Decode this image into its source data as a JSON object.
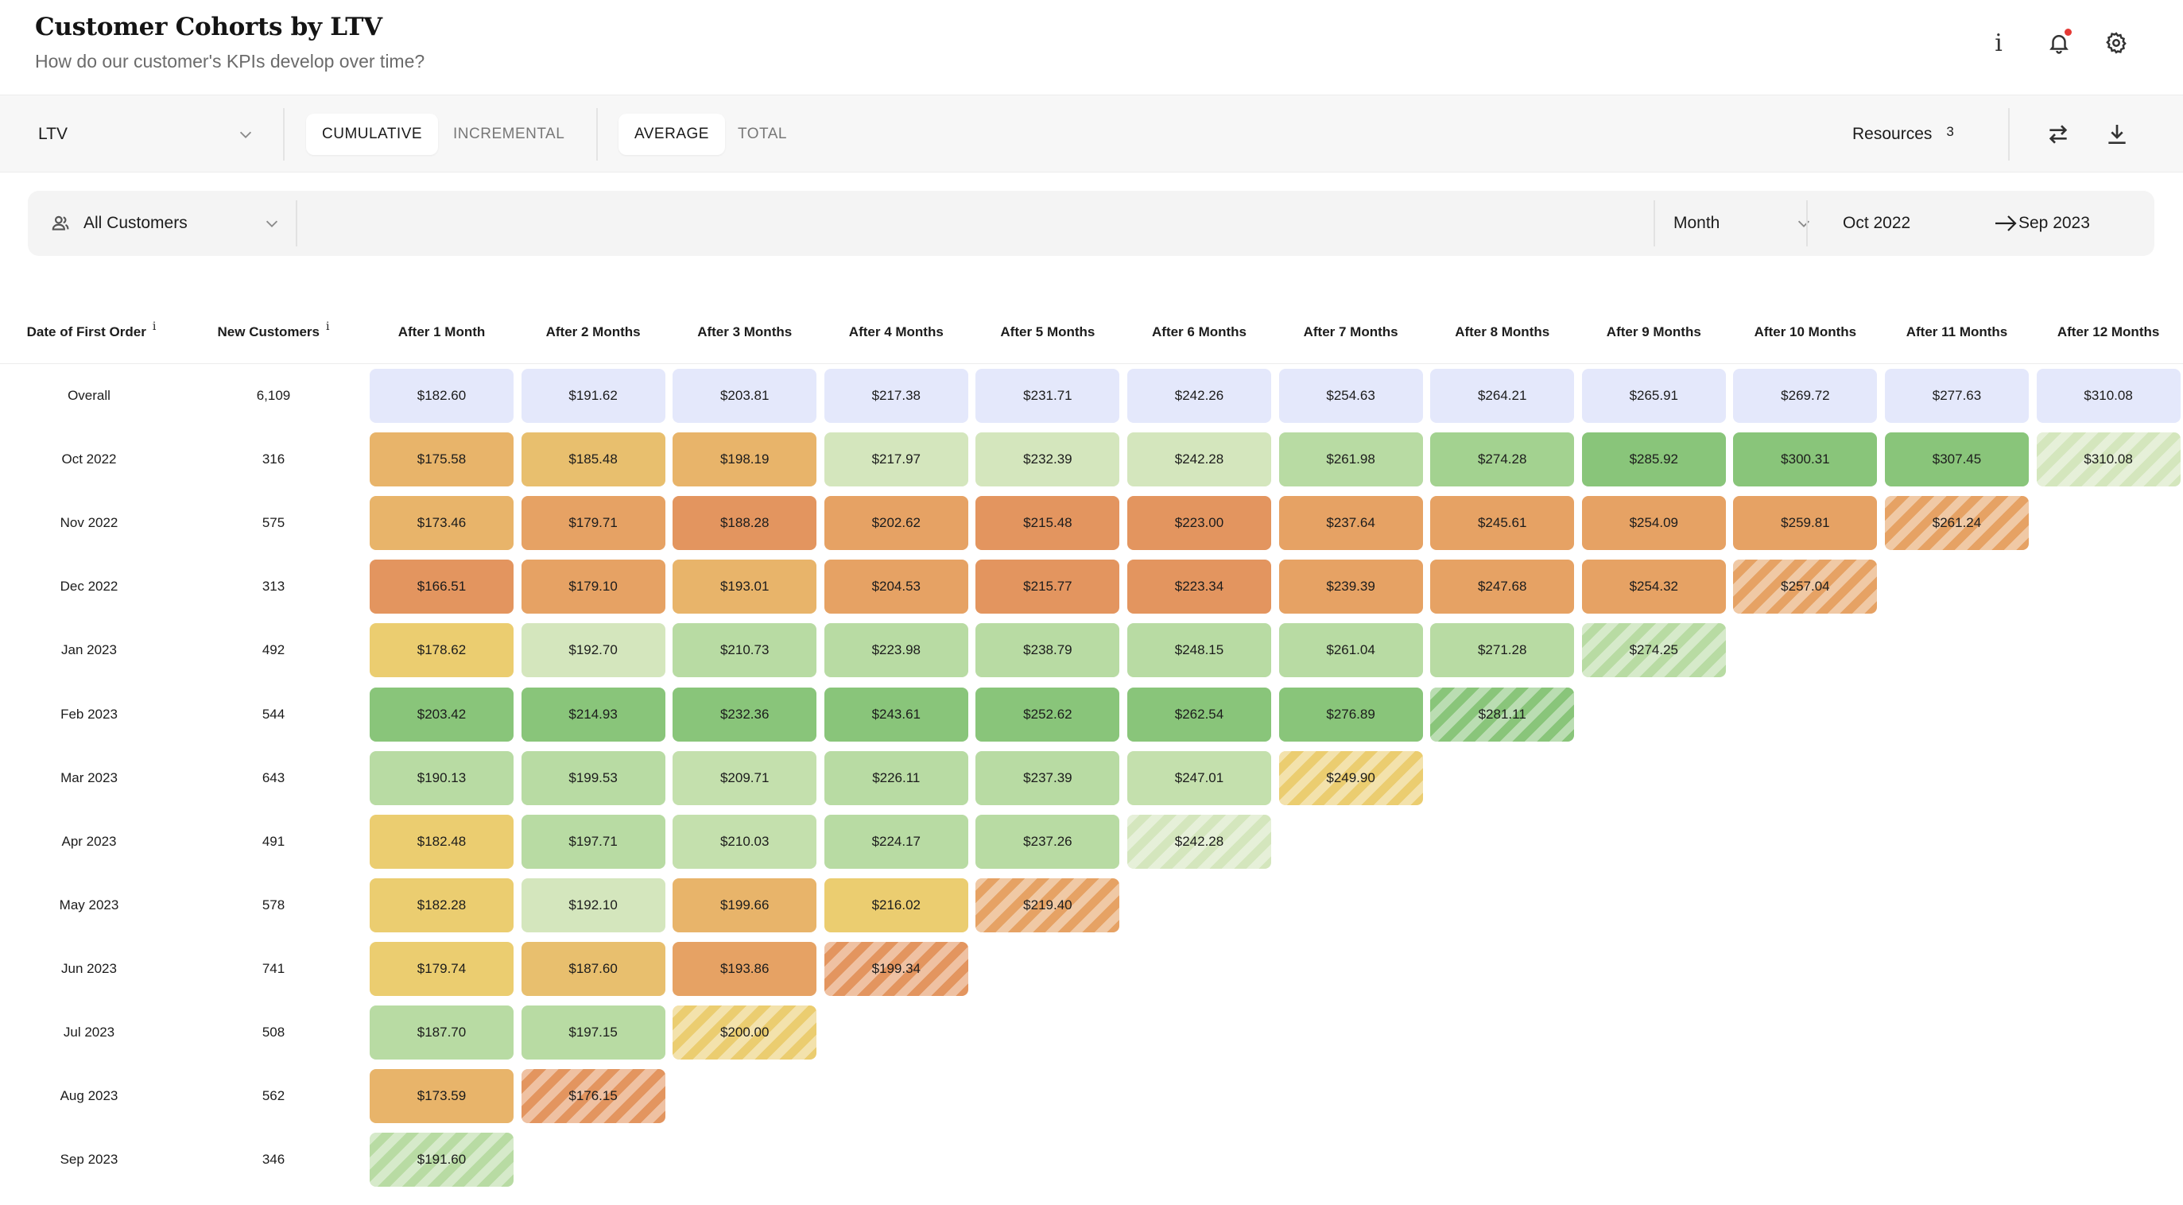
{
  "header": {
    "title": "Customer Cohorts by LTV",
    "subtitle": "How do our customer's KPIs develop over time?",
    "icons": [
      "info-icon",
      "bell-icon",
      "gear-icon"
    ]
  },
  "toolbar": {
    "metric": "LTV",
    "mode_options": [
      "CUMULATIVE",
      "INCREMENTAL"
    ],
    "mode_active": "CUMULATIVE",
    "agg_options": [
      "AVERAGE",
      "TOTAL"
    ],
    "agg_active": "AVERAGE",
    "resources_label": "Resources",
    "resources_count": "3",
    "icons": [
      "swap-icon",
      "download-icon"
    ]
  },
  "filters": {
    "segment": "All Customers",
    "period": "Month",
    "date_from": "Oct 2022",
    "date_to": "Sep 2023"
  },
  "table": {
    "col_date": "Date of First Order",
    "col_new": "New Customers",
    "info_glyph": "i",
    "periods": [
      "After 1 Month",
      "After 2 Months",
      "After 3 Months",
      "After 4 Months",
      "After 5 Months",
      "After 6 Months",
      "After 7 Months",
      "After 8 Months",
      "After 9 Months",
      "After 10 Months",
      "After 11 Months",
      "After 12 Months"
    ],
    "rows": [
      {
        "label": "Overall",
        "count": "6,109",
        "values": [
          "$182.60",
          "$191.62",
          "$203.81",
          "$217.38",
          "$231.71",
          "$242.26",
          "$254.63",
          "$264.21",
          "$265.91",
          "$269.72",
          "$277.63",
          "$310.08"
        ],
        "colors": [
          "#e4e8fb",
          "#e4e8fb",
          "#e4e8fb",
          "#e4e8fb",
          "#e4e8fb",
          "#e4e8fb",
          "#e4e8fb",
          "#e4e8fb",
          "#e4e8fb",
          "#e4e8fb",
          "#e4e8fb",
          "#e4e8fb"
        ],
        "partial_last": false
      },
      {
        "label": "Oct 2022",
        "count": "316",
        "values": [
          "$175.58",
          "$185.48",
          "$198.19",
          "$217.97",
          "$232.39",
          "$242.28",
          "$261.98",
          "$274.28",
          "$285.92",
          "$300.31",
          "$307.45",
          "$310.08"
        ],
        "colors": [
          "#e8b46a",
          "#e8bf6e",
          "#e8b46a",
          "#d4e6bd",
          "#d4e6bd",
          "#d4e6bd",
          "#b8dba3",
          "#a3d290",
          "#89c57a",
          "#89c57a",
          "#89c57a",
          "#d4e6bd"
        ],
        "partial_last": true
      },
      {
        "label": "Nov 2022",
        "count": "575",
        "values": [
          "$173.46",
          "$179.71",
          "$188.28",
          "$202.62",
          "$215.48",
          "$223.00",
          "$237.64",
          "$245.61",
          "$254.09",
          "$259.81",
          "$261.24"
        ],
        "colors": [
          "#e8b46a",
          "#e6a264",
          "#e3955f",
          "#e6a264",
          "#e3955f",
          "#e3955f",
          "#e6a264",
          "#e6a264",
          "#e6a264",
          "#e6a264",
          "#e6a264"
        ],
        "partial_last": true
      },
      {
        "label": "Dec 2022",
        "count": "313",
        "values": [
          "$166.51",
          "$179.10",
          "$193.01",
          "$204.53",
          "$215.77",
          "$223.34",
          "$239.39",
          "$247.68",
          "$254.32",
          "$257.04"
        ],
        "colors": [
          "#e3955f",
          "#e6a264",
          "#e8b46a",
          "#e6a264",
          "#e3955f",
          "#e3955f",
          "#e6a264",
          "#e6a264",
          "#e6a264",
          "#e6a264"
        ],
        "partial_last": true
      },
      {
        "label": "Jan 2023",
        "count": "492",
        "values": [
          "$178.62",
          "$192.70",
          "$210.73",
          "$223.98",
          "$238.79",
          "$248.15",
          "$261.04",
          "$271.28",
          "$274.25"
        ],
        "colors": [
          "#ebcd70",
          "#d4e6bd",
          "#b8dba3",
          "#b8dba3",
          "#b8dba3",
          "#b8dba3",
          "#b8dba3",
          "#b8dba3",
          "#b8dba3"
        ],
        "partial_last": true
      },
      {
        "label": "Feb 2023",
        "count": "544",
        "values": [
          "$203.42",
          "$214.93",
          "$232.36",
          "$243.61",
          "$252.62",
          "$262.54",
          "$276.89",
          "$281.11"
        ],
        "colors": [
          "#89c57a",
          "#89c57a",
          "#89c57a",
          "#89c57a",
          "#89c57a",
          "#89c57a",
          "#89c57a",
          "#89c57a"
        ],
        "partial_last": true
      },
      {
        "label": "Mar 2023",
        "count": "643",
        "values": [
          "$190.13",
          "$199.53",
          "$209.71",
          "$226.11",
          "$237.39",
          "$247.01",
          "$249.90"
        ],
        "colors": [
          "#b8dba3",
          "#b8dba3",
          "#c4e0ad",
          "#b8dba3",
          "#b8dba3",
          "#c4e0ad",
          "#ebcd70"
        ],
        "partial_last": true
      },
      {
        "label": "Apr 2023",
        "count": "491",
        "values": [
          "$182.48",
          "$197.71",
          "$210.03",
          "$224.17",
          "$237.26",
          "$242.28"
        ],
        "colors": [
          "#ebcd70",
          "#b8dba3",
          "#c4e0ad",
          "#b8dba3",
          "#b8dba3",
          "#d4e6bd"
        ],
        "partial_last": true
      },
      {
        "label": "May 2023",
        "count": "578",
        "values": [
          "$182.28",
          "$192.10",
          "$199.66",
          "$216.02",
          "$219.40"
        ],
        "colors": [
          "#ebcd70",
          "#d4e6bd",
          "#e8b46a",
          "#ebcd70",
          "#e6a264"
        ],
        "partial_last": true
      },
      {
        "label": "Jun 2023",
        "count": "741",
        "values": [
          "$179.74",
          "$187.60",
          "$193.86",
          "$199.34"
        ],
        "colors": [
          "#ebcd70",
          "#e8bf6e",
          "#e6a264",
          "#e3955f"
        ],
        "partial_last": true
      },
      {
        "label": "Jul 2023",
        "count": "508",
        "values": [
          "$187.70",
          "$197.15",
          "$200.00"
        ],
        "colors": [
          "#b8dba3",
          "#b8dba3",
          "#ebcd70"
        ],
        "partial_last": true
      },
      {
        "label": "Aug 2023",
        "count": "562",
        "values": [
          "$173.59",
          "$176.15"
        ],
        "colors": [
          "#e8b46a",
          "#e3955f"
        ],
        "partial_last": true
      },
      {
        "label": "Sep 2023",
        "count": "346",
        "values": [
          "$191.60"
        ],
        "colors": [
          "#b8dba3"
        ],
        "partial_last": true
      }
    ]
  }
}
